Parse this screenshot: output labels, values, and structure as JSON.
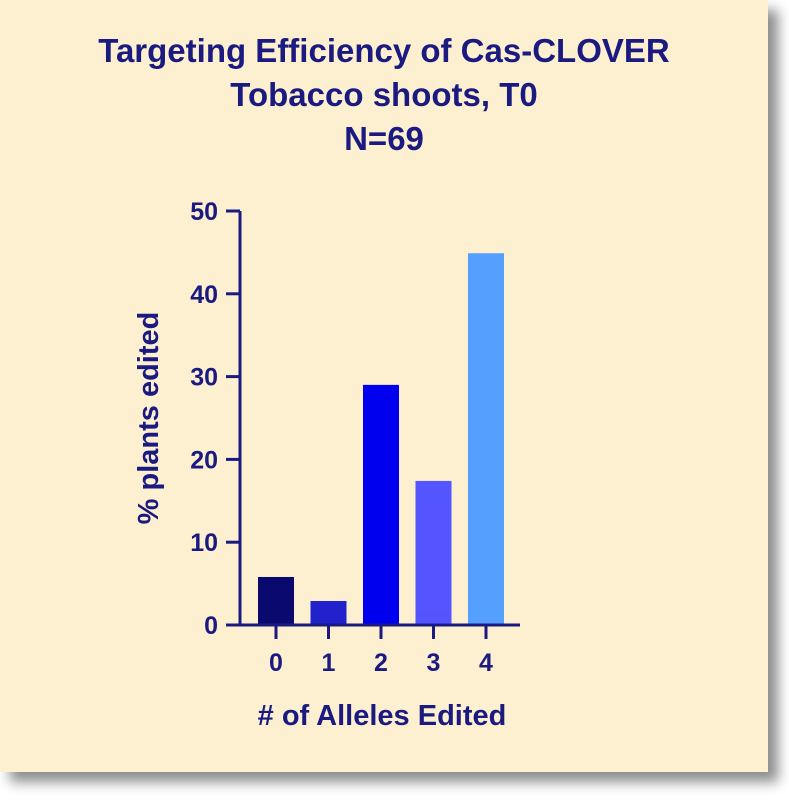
{
  "chart_data": {
    "type": "bar",
    "title_lines": [
      "Targeting Efficiency of Cas-CLOVER",
      "Tobacco shoots, T0",
      "N=69"
    ],
    "xlabel": "# of Alleles Edited",
    "ylabel": "%  plants edited",
    "categories": [
      "0",
      "1",
      "2",
      "3",
      "4"
    ],
    "values": [
      5.8,
      2.9,
      29.0,
      17.4,
      44.9
    ],
    "colors": [
      "#0a0a6e",
      "#2222cc",
      "#0000ee",
      "#5555ff",
      "#55a0ff"
    ],
    "ylim": [
      0,
      50
    ],
    "yticks": [
      "0",
      "10",
      "20",
      "30",
      "40",
      "50"
    ],
    "grid": false,
    "legend": "none"
  }
}
